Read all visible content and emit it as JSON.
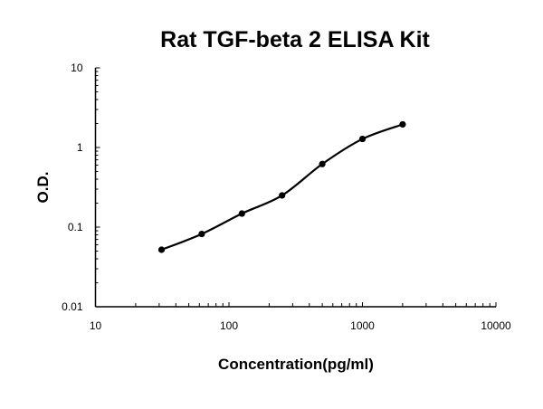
{
  "chart_data": {
    "type": "line",
    "title": "Rat TGF-beta 2 ELISA Kit",
    "xlabel": "Concentration(pg/ml)",
    "ylabel": "O.D.",
    "x_scale": "log",
    "y_scale": "log",
    "xlim": [
      10,
      10000
    ],
    "ylim": [
      0.01,
      10
    ],
    "x_tick_labels": [
      "10",
      "100",
      "1000",
      "10000"
    ],
    "y_tick_labels": [
      "0.01",
      "0.1",
      "1",
      "10"
    ],
    "grid": false,
    "series": [
      {
        "x": [
          31.25,
          62.5,
          125,
          250,
          500,
          1000,
          2000
        ],
        "y": [
          0.052,
          0.082,
          0.148,
          0.25,
          0.62,
          1.28,
          1.95
        ],
        "line": "smooth",
        "marker": "circle",
        "color": "#000000"
      }
    ]
  }
}
